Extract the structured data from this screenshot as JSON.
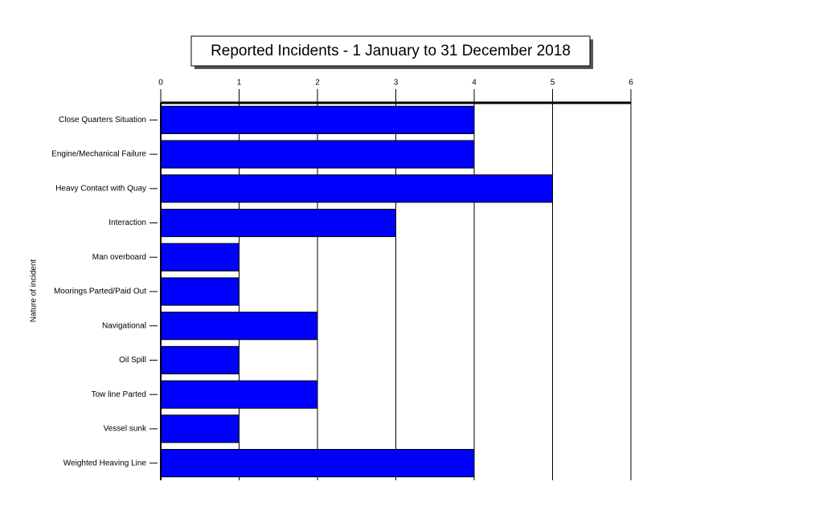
{
  "chart_data": {
    "type": "bar",
    "orientation": "horizontal",
    "title": "Reported Incidents - 1 January to 31 December 2018",
    "y_label": "Nature of incident",
    "categories": [
      "Close Quarters Situation",
      "Engine/Mechanical Failure",
      "Heavy Contact with Quay",
      "Interaction",
      "Man overboard",
      "Moorings Parted/Paid Out",
      "Navigational",
      "Oil Spill",
      "Tow line Parted",
      "Vessel sunk",
      "Weighted Heaving Line"
    ],
    "values": [
      4,
      4,
      5,
      3,
      1,
      1,
      2,
      1,
      2,
      1,
      4
    ],
    "color": "#0000ff",
    "xlim": [
      0,
      6
    ],
    "xticks": [
      0,
      1,
      2,
      3,
      4,
      5,
      6
    ],
    "grid": true
  }
}
